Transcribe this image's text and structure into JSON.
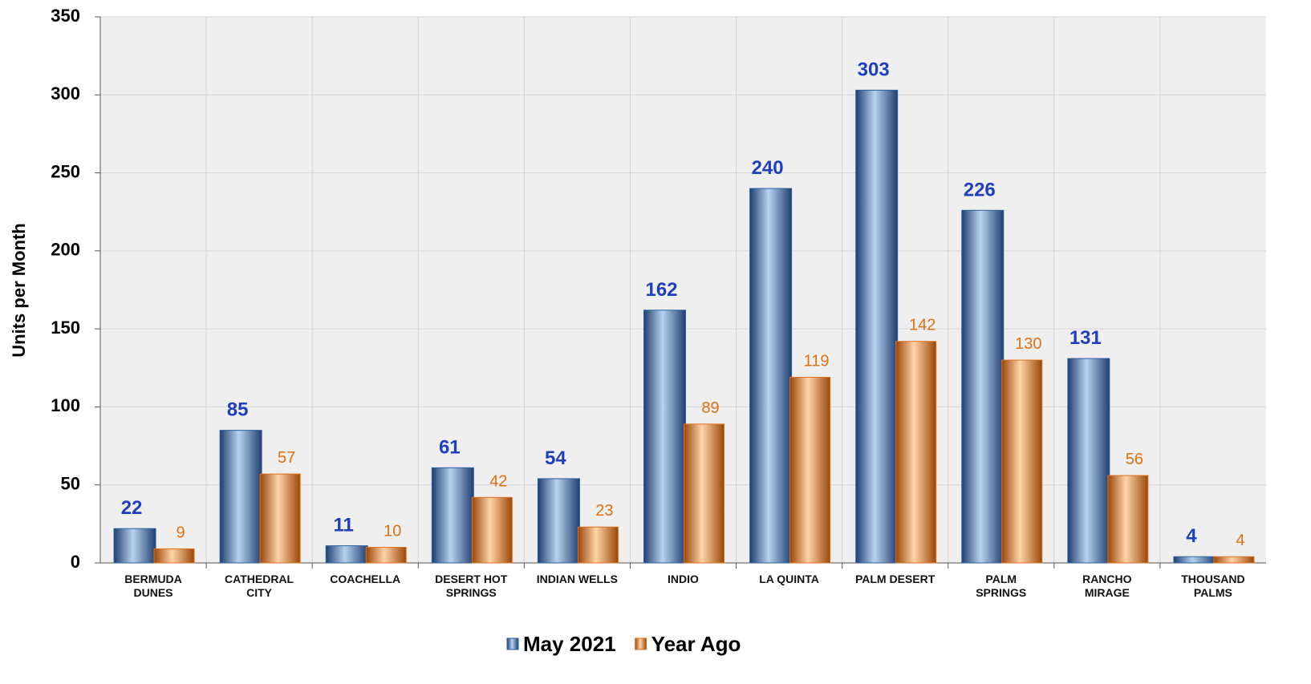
{
  "chart_data": {
    "type": "bar",
    "y_label": "Units per Month",
    "categories": [
      "BERMUDA\nDUNES",
      "CATHEDRAL\nCITY",
      "COACHELLA",
      "DESERT HOT\nSPRINGS",
      "INDIAN WELLS",
      "INDIO",
      "LA QUINTA",
      "PALM DESERT",
      "PALM\nSPRINGS",
      "RANCHO\nMIRAGE",
      "THOUSAND\nPALMS"
    ],
    "series": [
      {
        "name": "May 2021",
        "color": "#2f5f9f",
        "values": [
          22,
          85,
          11,
          61,
          54,
          162,
          240,
          303,
          226,
          131,
          4
        ]
      },
      {
        "name": "Year Ago",
        "color": "#e0701a",
        "values": [
          9,
          57,
          10,
          42,
          23,
          89,
          119,
          142,
          130,
          56,
          4
        ]
      }
    ],
    "ylim": [
      0,
      350
    ],
    "yticks": [
      0,
      50,
      100,
      150,
      200,
      250,
      300,
      350
    ],
    "grid": true
  }
}
